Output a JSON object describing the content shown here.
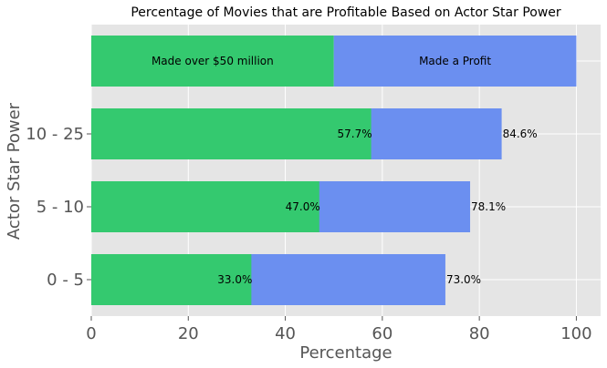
{
  "chart_data": {
    "type": "bar",
    "orientation": "horizontal",
    "stacked": false,
    "title": "Percentage of Movies that are Profitable Based on Actor Star Power",
    "xlabel": "Percentage",
    "ylabel": "Actor Star Power",
    "xlim": [
      0,
      105
    ],
    "xticks": [
      0,
      20,
      40,
      60,
      80,
      100
    ],
    "grid": true,
    "categories": [
      "0 - 5",
      "5 - 10",
      "10 - 25"
    ],
    "series": [
      {
        "name": "Made a Profit",
        "values": [
          73.0,
          78.1,
          84.6
        ],
        "labels": [
          "73.0%",
          "78.1%",
          "84.6%"
        ],
        "color": "#6b8ff0"
      },
      {
        "name": "Made over $50 million",
        "values": [
          33.0,
          47.0,
          57.7
        ],
        "labels": [
          "33.0%",
          "47.0%",
          "57.7%"
        ],
        "color": "#34c96f"
      }
    ],
    "legend_bar": {
      "segments": [
        {
          "label": "Made over $50 million",
          "value": 50,
          "color": "#34c96f"
        },
        {
          "label": "Made a Profit",
          "value": 50,
          "color": "#6b8ff0"
        }
      ]
    },
    "colors": {
      "plot_background": "#e5e5e5",
      "grid": "#ffffff"
    }
  }
}
